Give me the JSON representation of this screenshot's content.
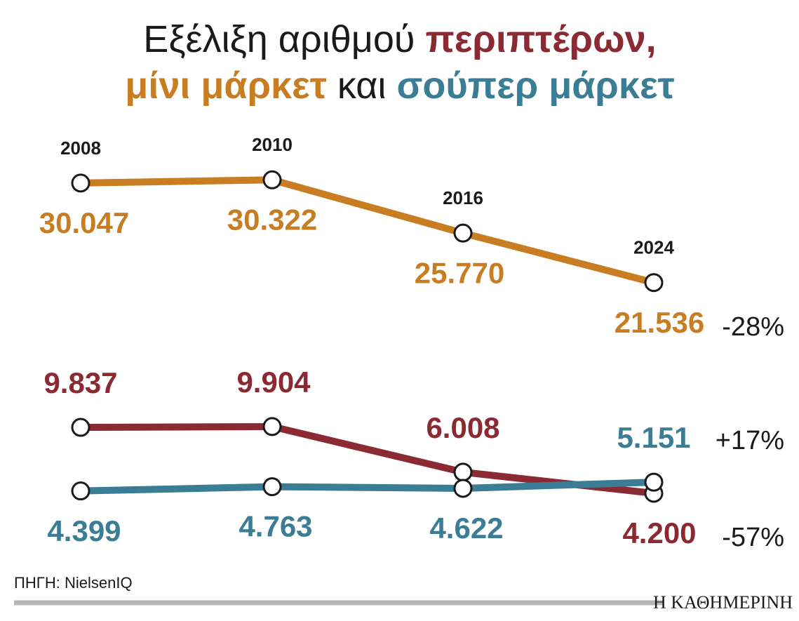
{
  "title": [
    "Εξέλιξη αριθμού",
    "περιπτέρων,",
    "μίνι μάρκετ",
    "και",
    "σούπερ μάρκετ"
  ],
  "title_colors": [
    "#1a1a1a",
    "#8b2a32",
    "#c97d22",
    "#1a1a1a",
    "#3a7d95"
  ],
  "source": "ΠΗΓΗ: NielsenIQ",
  "brand": "Η ΚΑΘΗΜΕΡΙΝΗ",
  "chart_data": {
    "type": "line",
    "categories": [
      "2008",
      "2010",
      "2016",
      "2024"
    ],
    "ylim": [
      1300,
      33700
    ],
    "y2lim": [
      1980,
      34380
    ],
    "series": [
      {
        "color": "#c97d22",
        "values": [
          30047,
          30322,
          25770,
          21536
        ],
        "value_labels": [
          "30.047",
          "30.322",
          "25.770",
          "21.536"
        ],
        "change": "-28%"
      },
      {
        "color": "#8b2a32",
        "axis": "y2",
        "values": [
          9837,
          9904,
          6008,
          4200
        ],
        "value_labels": [
          "9.837",
          "9.904",
          "6.008",
          "4.200"
        ],
        "change": "-57%"
      },
      {
        "color": "#3a7d95",
        "axis": "y2",
        "values": [
          4399,
          4763,
          4622,
          5151
        ],
        "value_labels": [
          "4.399",
          "4.763",
          "4.622",
          "5.151"
        ],
        "change": "+17%"
      }
    ]
  }
}
